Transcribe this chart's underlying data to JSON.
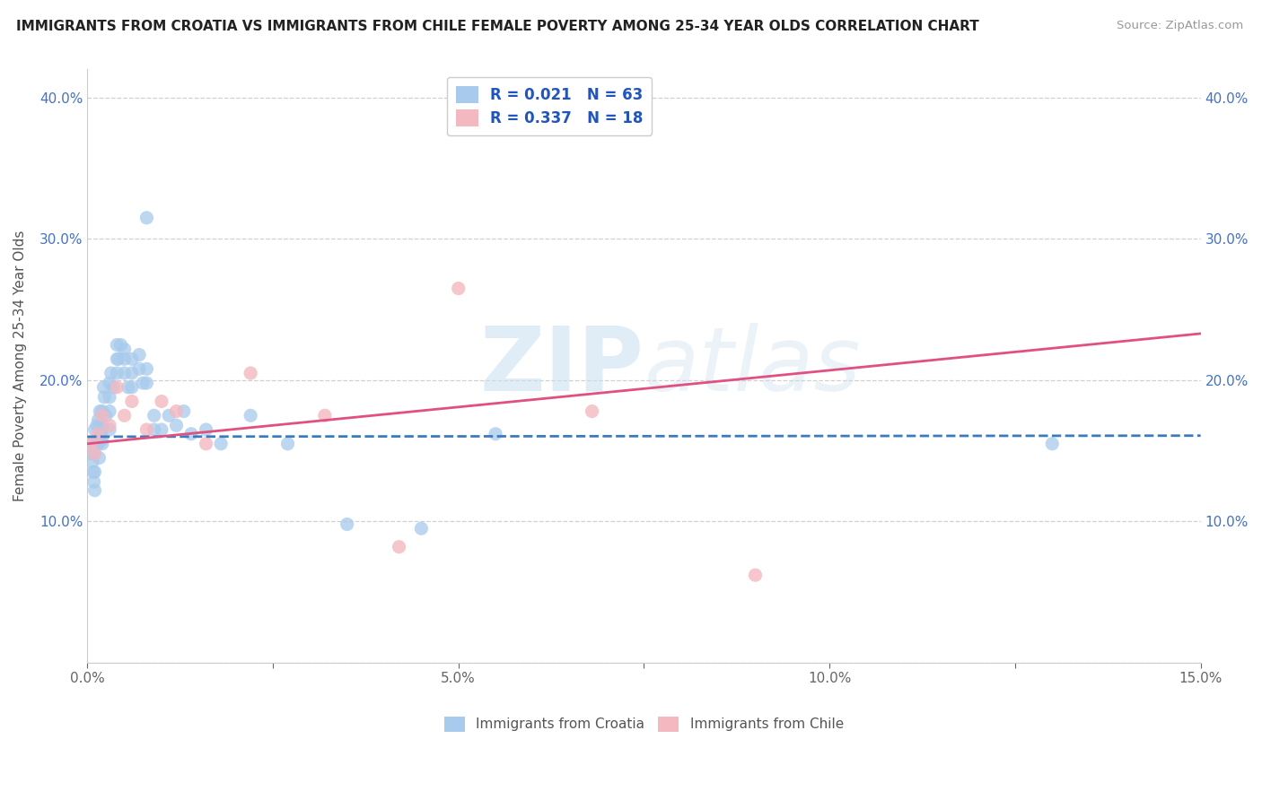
{
  "title": "IMMIGRANTS FROM CROATIA VS IMMIGRANTS FROM CHILE FEMALE POVERTY AMONG 25-34 YEAR OLDS CORRELATION CHART",
  "source": "Source: ZipAtlas.com",
  "ylabel": "Female Poverty Among 25-34 Year Olds",
  "xlim": [
    0.0,
    0.15
  ],
  "ylim": [
    0.0,
    0.42
  ],
  "xticks": [
    0.0,
    0.025,
    0.05,
    0.075,
    0.1,
    0.125,
    0.15
  ],
  "xticklabels": [
    "0.0%",
    "",
    "5.0%",
    "",
    "10.0%",
    "",
    "15.0%"
  ],
  "yticks": [
    0.0,
    0.1,
    0.2,
    0.3,
    0.4
  ],
  "yticklabels": [
    "",
    "10.0%",
    "20.0%",
    "30.0%",
    "40.0%"
  ],
  "croatia_color": "#a8caec",
  "chile_color": "#f4b8c1",
  "croatia_line_color": "#3a7bbf",
  "chile_line_color": "#e05080",
  "croatia_R": 0.021,
  "croatia_N": 63,
  "chile_R": 0.337,
  "chile_N": 18,
  "watermark_zip": "ZIP",
  "watermark_atlas": "atlas",
  "background_color": "#ffffff",
  "grid_color": "#d0d0d0",
  "croatia_intercept": 0.16,
  "croatia_slope": 0.005,
  "chile_intercept": 0.155,
  "chile_slope": 0.52,
  "croatia_x": [
    0.0005,
    0.0006,
    0.0007,
    0.0008,
    0.0009,
    0.001,
    0.001,
    0.001,
    0.001,
    0.0012,
    0.0013,
    0.0014,
    0.0015,
    0.0015,
    0.0016,
    0.0017,
    0.0018,
    0.002,
    0.002,
    0.002,
    0.002,
    0.002,
    0.0022,
    0.0023,
    0.0025,
    0.003,
    0.003,
    0.003,
    0.003,
    0.0032,
    0.0035,
    0.004,
    0.004,
    0.004,
    0.0042,
    0.0045,
    0.005,
    0.005,
    0.005,
    0.0055,
    0.006,
    0.006,
    0.006,
    0.007,
    0.007,
    0.0075,
    0.008,
    0.008,
    0.009,
    0.009,
    0.01,
    0.011,
    0.012,
    0.013,
    0.014,
    0.016,
    0.018,
    0.022,
    0.027,
    0.035,
    0.045,
    0.055,
    0.13
  ],
  "croatia_y": [
    0.155,
    0.148,
    0.142,
    0.135,
    0.128,
    0.122,
    0.135,
    0.148,
    0.165,
    0.155,
    0.168,
    0.158,
    0.172,
    0.155,
    0.145,
    0.178,
    0.162,
    0.158,
    0.168,
    0.178,
    0.165,
    0.155,
    0.195,
    0.188,
    0.175,
    0.198,
    0.188,
    0.178,
    0.165,
    0.205,
    0.195,
    0.225,
    0.215,
    0.205,
    0.215,
    0.225,
    0.222,
    0.215,
    0.205,
    0.195,
    0.215,
    0.205,
    0.195,
    0.218,
    0.208,
    0.198,
    0.208,
    0.198,
    0.175,
    0.165,
    0.165,
    0.175,
    0.168,
    0.178,
    0.162,
    0.165,
    0.155,
    0.175,
    0.155,
    0.098,
    0.095,
    0.162,
    0.155
  ],
  "croatia_outlier_x": [
    0.008
  ],
  "croatia_outlier_y": [
    0.315
  ],
  "chile_x": [
    0.0005,
    0.001,
    0.0015,
    0.002,
    0.003,
    0.004,
    0.005,
    0.006,
    0.008,
    0.01,
    0.012,
    0.016,
    0.022,
    0.032,
    0.042,
    0.05,
    0.068,
    0.09
  ],
  "chile_y": [
    0.155,
    0.148,
    0.162,
    0.175,
    0.168,
    0.195,
    0.175,
    0.185,
    0.165,
    0.185,
    0.178,
    0.155,
    0.205,
    0.175,
    0.082,
    0.265,
    0.178,
    0.062
  ]
}
